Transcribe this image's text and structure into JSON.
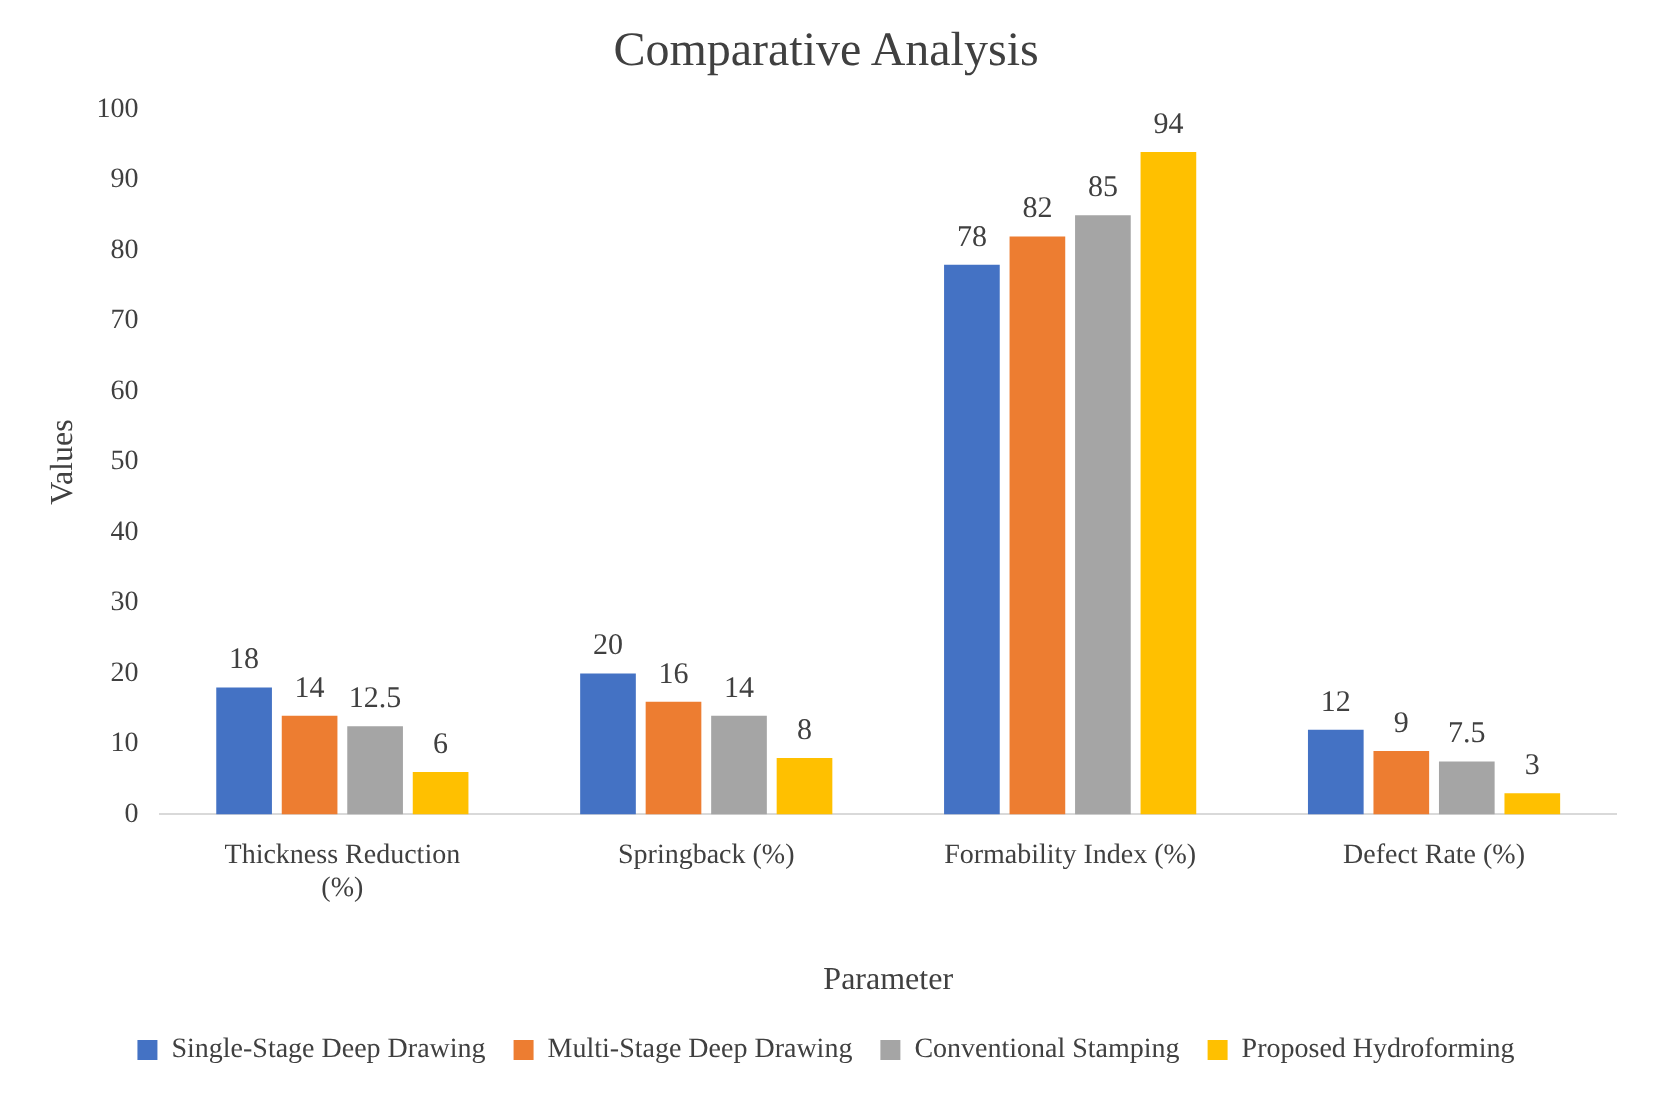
{
  "chart_data": {
    "type": "bar",
    "title": "Comparative Analysis",
    "xlabel": "Parameter",
    "ylabel": "Values",
    "categories": [
      "Thickness Reduction (%)",
      "Springback (%)",
      "Formability Index (%)",
      "Defect Rate (%)"
    ],
    "series": [
      {
        "name": "Single-Stage Deep Drawing",
        "color": "#4472c4",
        "values": [
          18,
          20,
          78,
          12
        ]
      },
      {
        "name": "Multi-Stage Deep Drawing",
        "color": "#ed7d31",
        "values": [
          14,
          16,
          82,
          9
        ]
      },
      {
        "name": "Conventional Stamping",
        "color": "#a5a5a5",
        "values": [
          12.5,
          14,
          85,
          7.5
        ]
      },
      {
        "name": "Proposed Hydroforming",
        "color": "#ffc000",
        "values": [
          6,
          8,
          94,
          3
        ]
      }
    ],
    "ylim": [
      0,
      100
    ],
    "yticks": [
      0,
      10,
      20,
      30,
      40,
      50,
      60,
      70,
      80,
      90,
      100
    ],
    "grid": false,
    "legend": "bottom",
    "data_labels": true
  }
}
